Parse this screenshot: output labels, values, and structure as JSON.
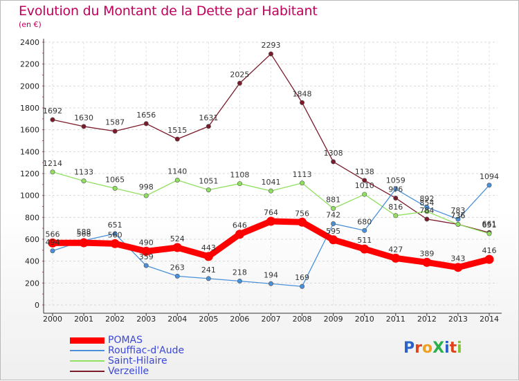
{
  "brand": {
    "logo_text": "ProXiti"
  },
  "chart_data": {
    "type": "line",
    "title": "Evolution du Montant de la Dette par Habitant",
    "ylabel": "(en €)",
    "xlabel": "",
    "x": [
      "2000",
      "2001",
      "2002",
      "2003",
      "2004",
      "2005",
      "2006",
      "2007",
      "2008",
      "2009",
      "2010",
      "2011",
      "2012",
      "2013",
      "2014"
    ],
    "yticks": [
      0,
      200,
      400,
      600,
      800,
      1000,
      1200,
      1400,
      1600,
      1800,
      2000,
      2200,
      2400
    ],
    "ylim": [
      0,
      2400
    ],
    "grid": true,
    "legend_position": "bottom-left",
    "series": [
      {
        "name": "POMAS",
        "color": "#ff0000",
        "values": [
          566,
          568,
          560,
          490,
          524,
          443,
          646,
          764,
          756,
          595,
          511,
          427,
          389,
          343,
          416
        ],
        "labels": [
          566,
          568,
          560,
          490,
          524,
          443,
          646,
          764,
          756,
          595,
          511,
          427,
          389,
          343,
          416
        ]
      },
      {
        "name": "Rouffiac-d'Aude",
        "color": "#4a90d9",
        "values": [
          494,
          588,
          651,
          359,
          263,
          241,
          218,
          194,
          169,
          742,
          680,
          1059,
          892,
          783,
          1094
        ],
        "labels": [
          494,
          588,
          651,
          359,
          263,
          241,
          218,
          194,
          169,
          742,
          680,
          1059,
          892,
          783,
          1094
        ]
      },
      {
        "name": "Saint-Hilaire",
        "color": "#90e060",
        "values": [
          1214,
          1133,
          1065,
          998,
          1140,
          1051,
          1108,
          1041,
          1113,
          881,
          1010,
          816,
          854,
          736,
          651
        ],
        "labels": [
          1214,
          1133,
          1065,
          998,
          1140,
          1051,
          1108,
          1041,
          1113,
          881,
          1010,
          816,
          854,
          736,
          651
        ]
      },
      {
        "name": "Verzeille",
        "color": "#7a1a2a",
        "values": [
          1692,
          1630,
          1587,
          1656,
          1515,
          1631,
          2025,
          2293,
          1848,
          1308,
          1138,
          976,
          784,
          736,
          661
        ],
        "labels": [
          1692,
          1630,
          1587,
          1656,
          1515,
          1631,
          2025,
          2293,
          1848,
          1308,
          1138,
          976,
          784,
          736,
          661
        ]
      }
    ]
  }
}
